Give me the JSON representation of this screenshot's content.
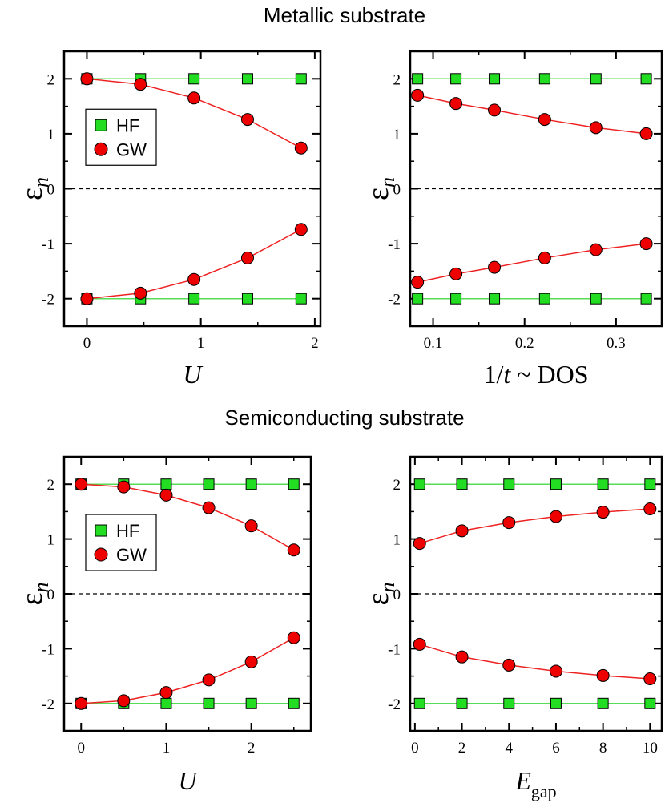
{
  "figure": {
    "top_title": "Metallic substrate",
    "bottom_title": "Semiconducting substrate"
  },
  "colors": {
    "hf_marker": "#22dd22",
    "hf_line": "#55dd55",
    "gw_marker": "#ee0000",
    "gw_line": "#ee2222",
    "zero_line": "#000000"
  },
  "chart_data": [
    {
      "type": "line",
      "xlabel": "U",
      "ylabel": "ε_n",
      "xlim": [
        -0.2,
        2.05
      ],
      "ylim": [
        -2.5,
        2.5
      ],
      "xticks": [
        0,
        1,
        2
      ],
      "yticks": [
        -2,
        -1,
        0,
        1,
        2
      ],
      "zero_line": true,
      "legend": {
        "position": "upper-left",
        "entries": [
          "HF",
          "GW"
        ]
      },
      "series": [
        {
          "name": "HF",
          "marker": "square",
          "x": [
            0,
            0.47,
            0.94,
            1.41,
            1.88
          ],
          "y": [
            2,
            2,
            2,
            2,
            2
          ]
        },
        {
          "name": "HF",
          "marker": "square",
          "x": [
            0,
            0.47,
            0.94,
            1.41,
            1.88
          ],
          "y": [
            -2,
            -2,
            -2,
            -2,
            -2
          ]
        },
        {
          "name": "GW",
          "marker": "circle",
          "x": [
            0,
            0.47,
            0.94,
            1.41,
            1.88
          ],
          "y": [
            2.0,
            1.9,
            1.65,
            1.26,
            0.74
          ]
        },
        {
          "name": "GW",
          "marker": "circle",
          "x": [
            0,
            0.47,
            0.94,
            1.41,
            1.88
          ],
          "y": [
            -2.0,
            -1.9,
            -1.65,
            -1.26,
            -0.74
          ]
        }
      ]
    },
    {
      "type": "line",
      "xlabel": "1/t ~ DOS",
      "ylabel": "ε_n",
      "xlim": [
        0.075,
        0.35
      ],
      "ylim": [
        -2.5,
        2.5
      ],
      "xticks": [
        0.1,
        0.2,
        0.3
      ],
      "yticks": [
        -2,
        -1,
        0,
        1,
        2
      ],
      "zero_line": true,
      "series": [
        {
          "name": "HF",
          "marker": "square",
          "x": [
            0.083,
            0.125,
            0.167,
            0.222,
            0.278,
            0.333
          ],
          "y": [
            2,
            2,
            2,
            2,
            2,
            2
          ]
        },
        {
          "name": "HF",
          "marker": "square",
          "x": [
            0.083,
            0.125,
            0.167,
            0.222,
            0.278,
            0.333
          ],
          "y": [
            -2,
            -2,
            -2,
            -2,
            -2,
            -2
          ]
        },
        {
          "name": "GW",
          "marker": "circle",
          "x": [
            0.083,
            0.125,
            0.167,
            0.222,
            0.278,
            0.333
          ],
          "y": [
            1.7,
            1.55,
            1.43,
            1.26,
            1.11,
            1.0
          ]
        },
        {
          "name": "GW",
          "marker": "circle",
          "x": [
            0.083,
            0.125,
            0.167,
            0.222,
            0.278,
            0.333
          ],
          "y": [
            -1.7,
            -1.55,
            -1.43,
            -1.26,
            -1.11,
            -1.0
          ]
        }
      ]
    },
    {
      "type": "line",
      "xlabel": "U",
      "ylabel": "ε_n",
      "xlim": [
        -0.2,
        2.7
      ],
      "ylim": [
        -2.5,
        2.5
      ],
      "xticks": [
        0,
        1,
        2
      ],
      "yticks": [
        -2,
        -1,
        0,
        1,
        2
      ],
      "zero_line": true,
      "legend": {
        "position": "upper-left",
        "entries": [
          "HF",
          "GW"
        ]
      },
      "series": [
        {
          "name": "HF",
          "marker": "square",
          "x": [
            0,
            0.5,
            1,
            1.5,
            2,
            2.5
          ],
          "y": [
            2,
            2,
            2,
            2,
            2,
            2
          ]
        },
        {
          "name": "HF",
          "marker": "square",
          "x": [
            0,
            0.5,
            1,
            1.5,
            2,
            2.5
          ],
          "y": [
            -2,
            -2,
            -2,
            -2,
            -2,
            -2
          ]
        },
        {
          "name": "GW",
          "marker": "circle",
          "x": [
            0,
            0.5,
            1,
            1.5,
            2,
            2.5
          ],
          "y": [
            2.0,
            1.95,
            1.8,
            1.57,
            1.24,
            0.8
          ]
        },
        {
          "name": "GW",
          "marker": "circle",
          "x": [
            0,
            0.5,
            1,
            1.5,
            2,
            2.5
          ],
          "y": [
            -2.0,
            -1.95,
            -1.8,
            -1.57,
            -1.24,
            -0.8
          ]
        }
      ]
    },
    {
      "type": "line",
      "xlabel": "E_gap",
      "ylabel": "ε_n",
      "xlim": [
        -0.2,
        10.5
      ],
      "ylim": [
        -2.5,
        2.5
      ],
      "xticks": [
        0,
        2,
        4,
        6,
        8,
        10
      ],
      "yticks": [
        -2,
        -1,
        0,
        1,
        2
      ],
      "zero_line": true,
      "series": [
        {
          "name": "HF",
          "marker": "square",
          "x": [
            0.2,
            2,
            4,
            6,
            8,
            10
          ],
          "y": [
            2,
            2,
            2,
            2,
            2,
            2
          ]
        },
        {
          "name": "HF",
          "marker": "square",
          "x": [
            0.2,
            2,
            4,
            6,
            8,
            10
          ],
          "y": [
            -2,
            -2,
            -2,
            -2,
            -2,
            -2
          ]
        },
        {
          "name": "GW",
          "marker": "circle",
          "x": [
            0.2,
            2,
            4,
            6,
            8,
            10
          ],
          "y": [
            0.92,
            1.15,
            1.3,
            1.41,
            1.49,
            1.55
          ]
        },
        {
          "name": "GW",
          "marker": "circle",
          "x": [
            0.2,
            2,
            4,
            6,
            8,
            10
          ],
          "y": [
            -0.92,
            -1.15,
            -1.3,
            -1.41,
            -1.49,
            -1.55
          ]
        }
      ]
    }
  ]
}
